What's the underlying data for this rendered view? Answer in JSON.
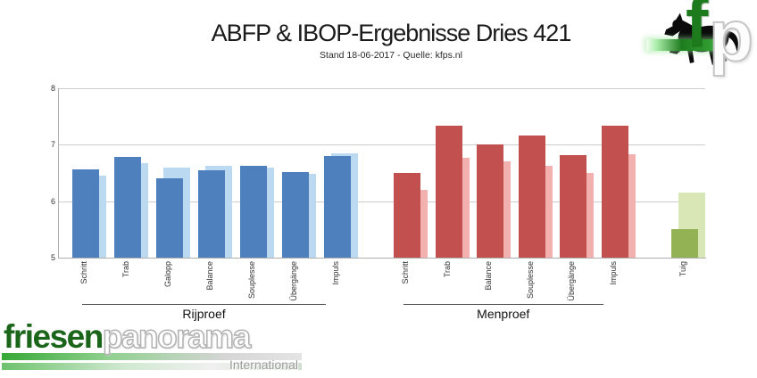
{
  "header": {
    "title": "ABFP & IBOP-Ergebnisse Dries 421",
    "subtitle": "Stand 18-06-2017 - Quelle: kfps.nl"
  },
  "kfp_logo": {
    "horse_icon": "black-horse-silhouette",
    "letter_f": "f",
    "letter_p": "p",
    "band_color": "#1e7c1e"
  },
  "chart_data": {
    "type": "bar",
    "title": "ABFP & IBOP-Ergebnisse Dries 421",
    "subtitle": "Stand 18-06-2017 - Quelle: kfps.nl",
    "ylim": [
      5,
      8
    ],
    "yticks": [
      5,
      6,
      7,
      8
    ],
    "grid": "horizontal",
    "legend": "none",
    "bar_style": "two overlapping series per category: saturated front bar, pale back bar offset right",
    "groups": [
      {
        "name": "Rijproef",
        "dark_color": "#4d80bd",
        "light_color": "#bcd9f2",
        "categories": [
          "Schritt",
          "Trab",
          "Galopp",
          "Balance",
          "Souplesse",
          "Übergänge",
          "Impuls"
        ],
        "dark_values": [
          6.57,
          6.78,
          6.4,
          6.55,
          6.62,
          6.52,
          6.8
        ],
        "light_values": [
          6.45,
          6.68,
          6.6,
          6.63,
          6.6,
          6.49,
          6.85
        ]
      },
      {
        "name": "Menproef",
        "dark_color": "#c1504e",
        "light_color": "#f2b1ae",
        "categories": [
          "Schritt",
          "Trab",
          "Balance",
          "Souplesse",
          "Übergänge",
          "Impuls"
        ],
        "dark_values": [
          6.5,
          7.33,
          7.0,
          7.17,
          6.82,
          7.33
        ],
        "light_values": [
          6.2,
          6.77,
          6.7,
          6.62,
          6.5,
          6.83
        ]
      },
      {
        "name": "",
        "dark_color": "#93b253",
        "light_color": "#d9e6b5",
        "categories": [
          "Tuig"
        ],
        "dark_values": [
          5.5
        ],
        "light_values": [
          6.15
        ]
      }
    ]
  },
  "footer_logo": {
    "part1": "friesen",
    "part2": "panorama",
    "subtext": "International",
    "green": "#1b651b"
  }
}
